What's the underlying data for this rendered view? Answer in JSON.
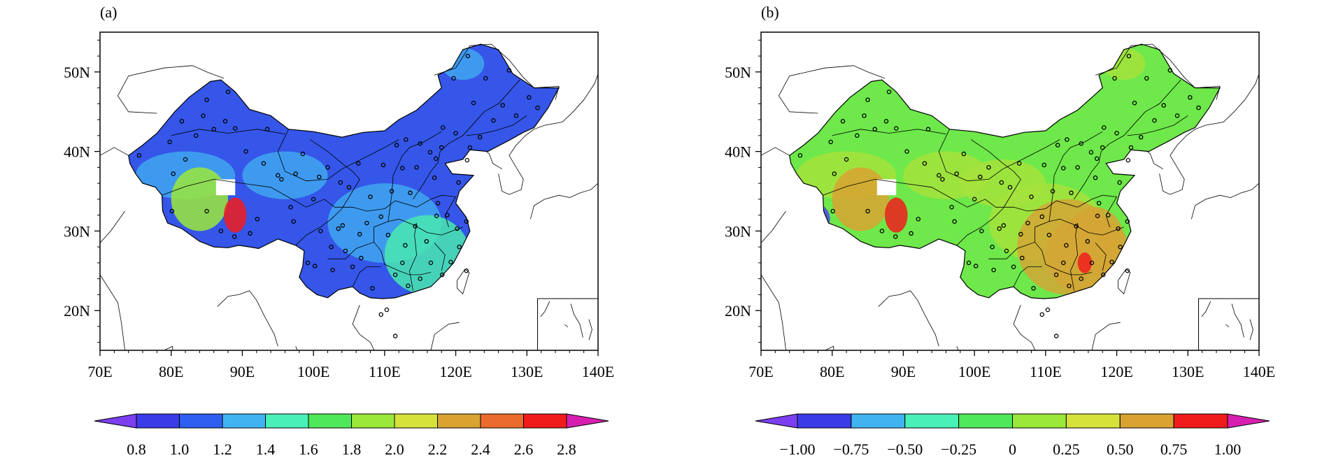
{
  "panels": [
    {
      "label": "(a)",
      "xticks": [
        "70E",
        "80E",
        "90E",
        "100E",
        "110E",
        "120E",
        "130E",
        "140E"
      ],
      "yticks": [
        "20N",
        "30N",
        "40N",
        "50N"
      ],
      "colorbar": {
        "labels": [
          "0.8",
          "1.0",
          "1.2",
          "1.4",
          "1.6",
          "1.8",
          "2.0",
          "2.2",
          "2.4",
          "2.6",
          "2.8"
        ],
        "colors": [
          "#7b3ff0",
          "#3b3be8",
          "#2f5ff0",
          "#3fb4f0",
          "#49f0b8",
          "#4fe85a",
          "#9be83a",
          "#d6e23a",
          "#d9a231",
          "#eb6b2c",
          "#f01c1c",
          "#d61fb0"
        ]
      },
      "field": {
        "base": "#3556e8",
        "secondary": "#3fa6f0",
        "tertiary": "#49e8b0",
        "hot": "#f01c1c",
        "warm": "#9be83a"
      }
    },
    {
      "label": "(b)",
      "xticks": [
        "70E",
        "80E",
        "90E",
        "100E",
        "110E",
        "120E",
        "130E",
        "140E"
      ],
      "yticks": [
        "20N",
        "30N",
        "40N",
        "50N"
      ],
      "colorbar": {
        "labels": [
          "−1.00",
          "−0.75",
          "−0.50",
          "−0.25",
          "0",
          "0.25",
          "0.50",
          "0.75",
          "1.00"
        ],
        "colors": [
          "#7b3ff0",
          "#3b3be8",
          "#3fb4f0",
          "#49f0b8",
          "#4fe85a",
          "#9be83a",
          "#d6e23a",
          "#d9a231",
          "#f01c1c",
          "#d61fb0"
        ]
      },
      "field": {
        "base": "#6ee84a",
        "secondary": "#a6e23c",
        "tertiary": "#d4a635",
        "hot": "#f01c1c",
        "warm": "#d9a231"
      }
    }
  ]
}
